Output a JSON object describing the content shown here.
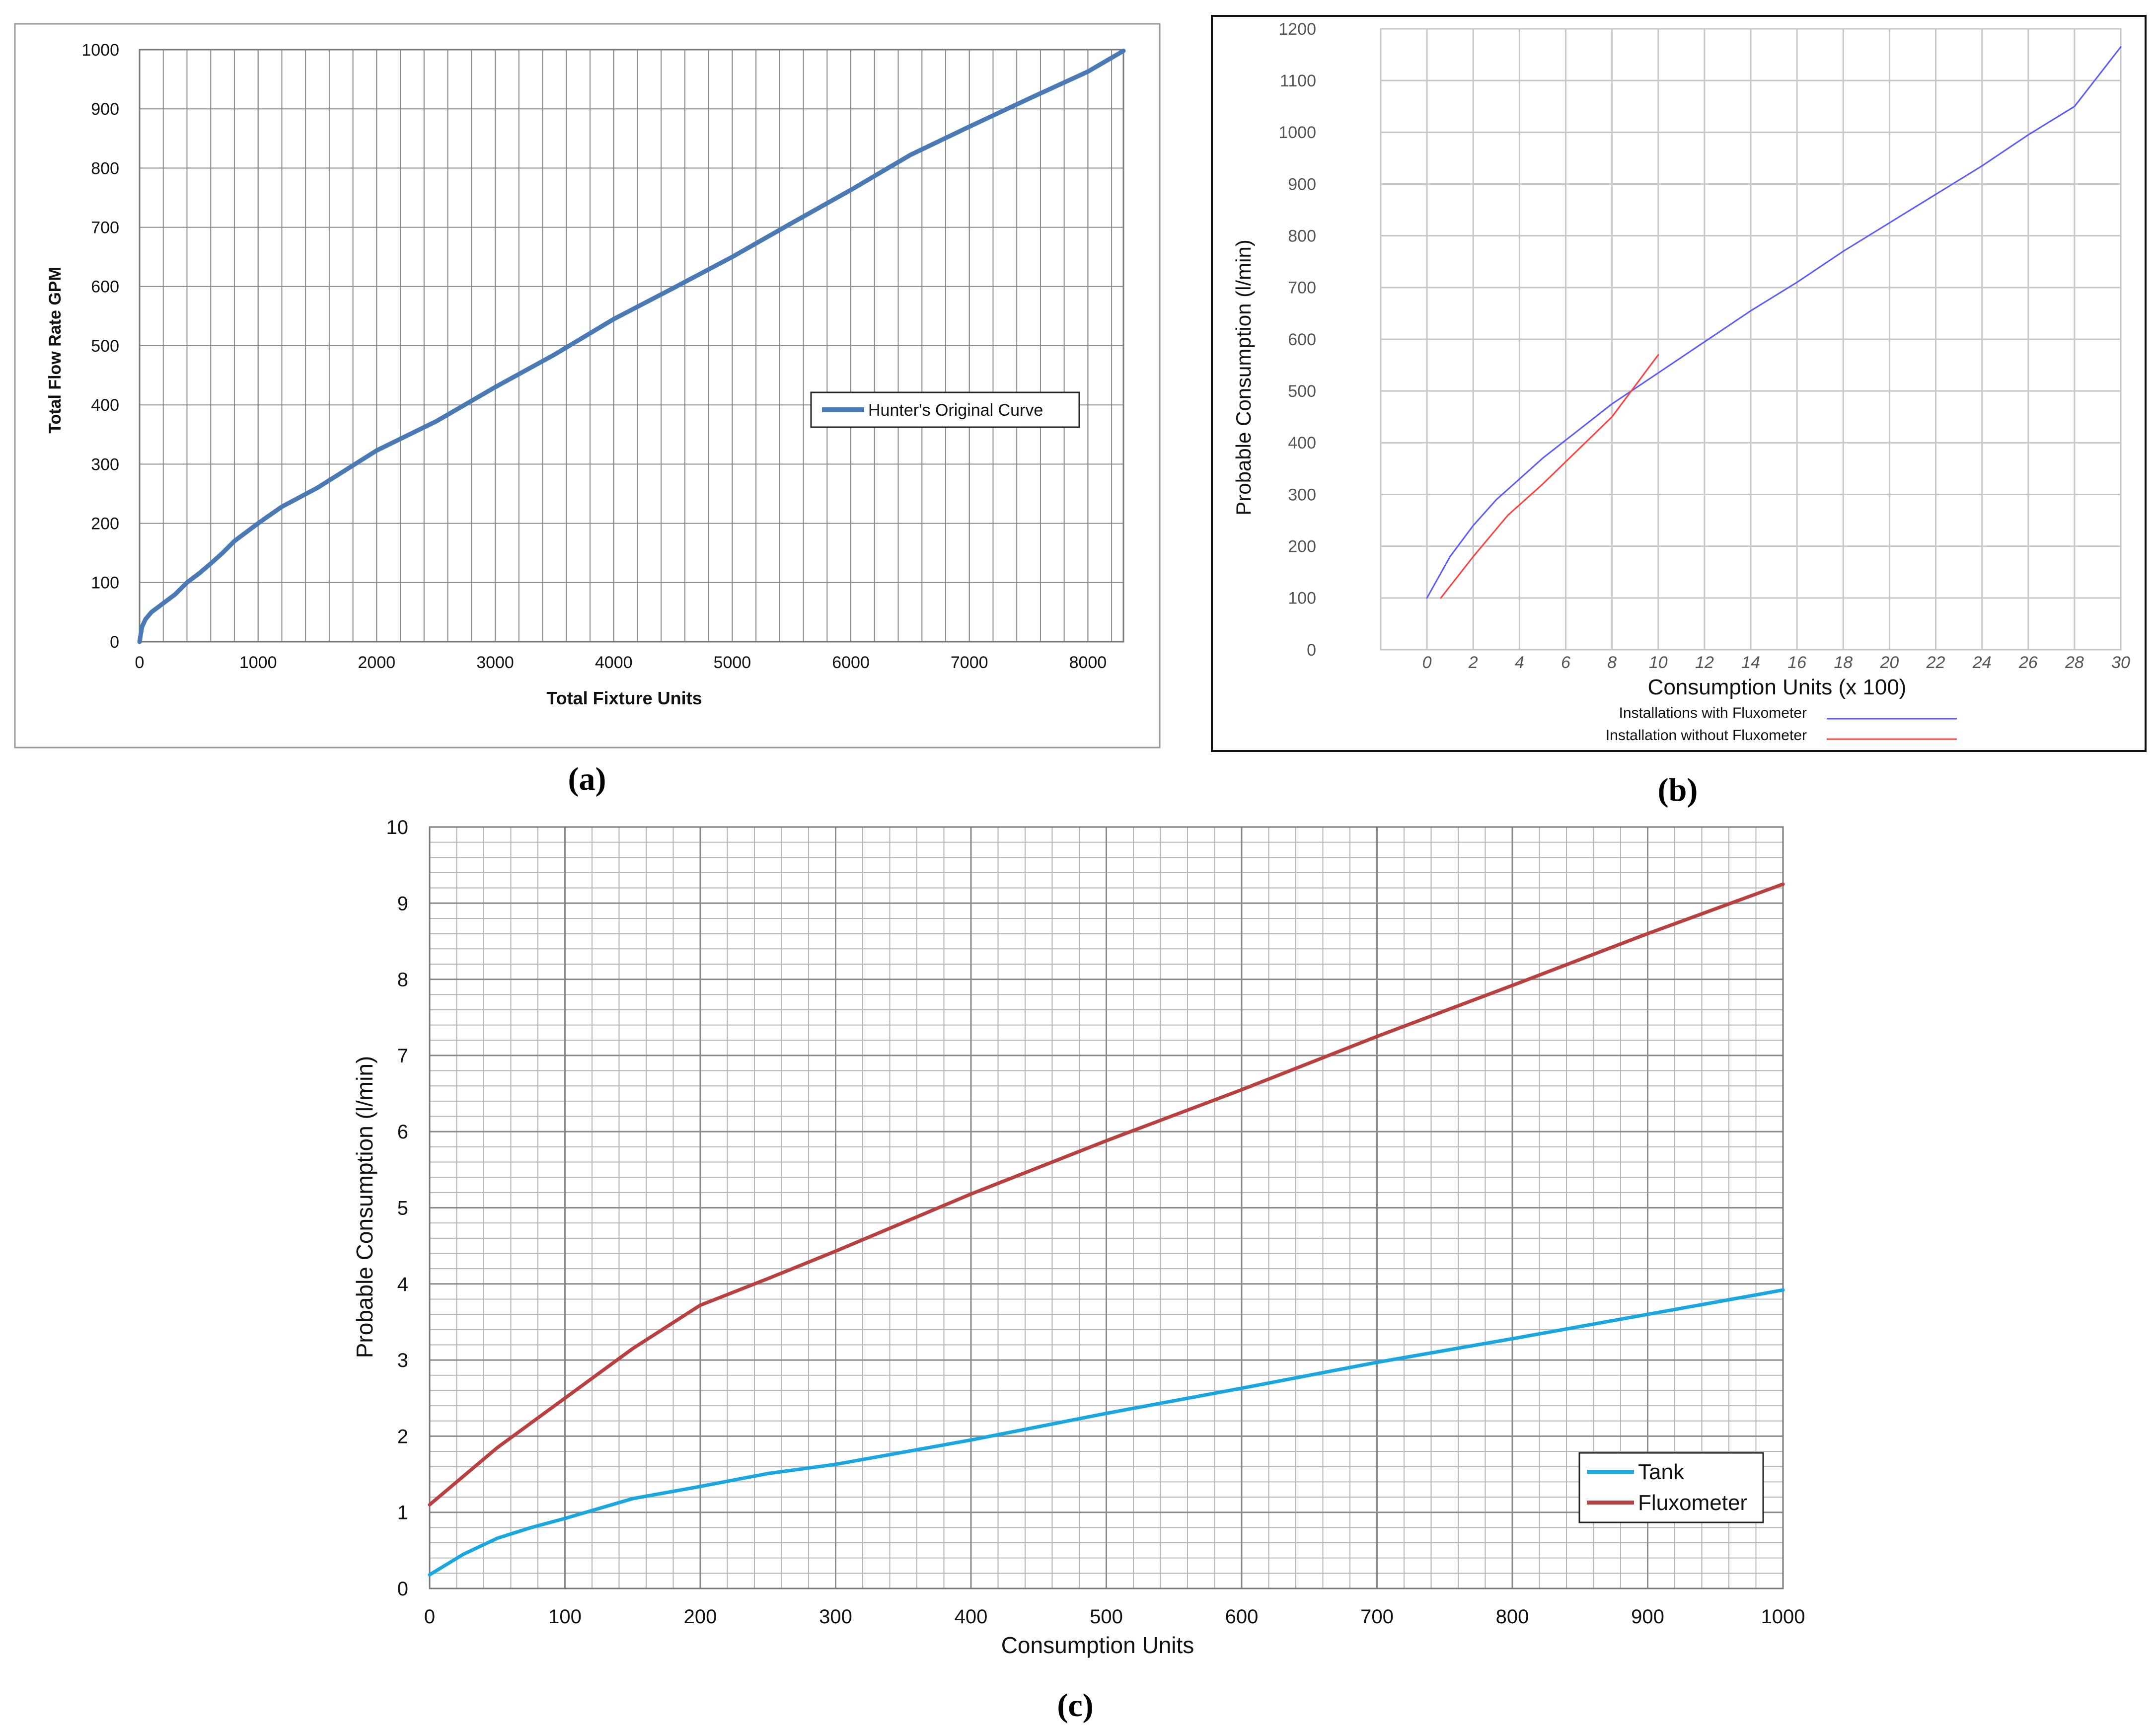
{
  "chart_data": [
    {
      "id": "a",
      "panel_label": "(a)",
      "type": "line",
      "title": "",
      "xlabel": "Total Fixture Units",
      "ylabel": "Total Flow Rate GPM",
      "xlim": [
        0,
        8300
      ],
      "ylim": [
        0,
        1000
      ],
      "x_ticks": [
        0,
        1000,
        2000,
        3000,
        4000,
        5000,
        6000,
        7000,
        8000
      ],
      "y_ticks": [
        0,
        100,
        200,
        300,
        400,
        500,
        600,
        700,
        800,
        900,
        1000
      ],
      "grid": true,
      "legend_position": "center-right",
      "series": [
        {
          "name": "Hunter's Original Curve",
          "color": "#4a7ab5",
          "x": [
            0,
            20,
            50,
            100,
            200,
            300,
            400,
            500,
            600,
            700,
            800,
            1000,
            1200,
            1500,
            2000,
            2500,
            3000,
            3500,
            4000,
            4500,
            5000,
            5500,
            6000,
            6500,
            7000,
            7500,
            8000,
            8300
          ],
          "y": [
            0,
            25,
            38,
            50,
            65,
            80,
            100,
            115,
            132,
            150,
            170,
            200,
            228,
            260,
            323,
            372,
            430,
            485,
            545,
            597,
            650,
            707,
            763,
            822,
            870,
            917,
            963,
            998
          ]
        }
      ]
    },
    {
      "id": "b",
      "panel_label": "(b)",
      "type": "line",
      "title": "",
      "xlabel": "Consumption Units (x 100)",
      "ylabel": "Probable Consumption (l/min)",
      "xlim": [
        -2,
        30
      ],
      "ylim": [
        0,
        1200
      ],
      "x_ticks": [
        0,
        2,
        4,
        6,
        8,
        10,
        12,
        14,
        16,
        18,
        20,
        22,
        24,
        26,
        28,
        30
      ],
      "y_ticks": [
        0,
        100,
        200,
        300,
        400,
        500,
        600,
        700,
        800,
        900,
        1000,
        1100,
        1200
      ],
      "grid": true,
      "legend_position": "bottom",
      "series": [
        {
          "name": "Installations with Fluxometer",
          "color": "#5b5bff",
          "x": [
            0,
            1,
            2,
            3,
            4,
            5,
            6,
            7,
            8,
            9,
            10,
            12,
            14,
            16,
            18,
            20,
            22,
            24,
            26,
            28,
            30
          ],
          "y": [
            100,
            180,
            240,
            290,
            330,
            370,
            405,
            440,
            475,
            505,
            535,
            595,
            655,
            710,
            770,
            825,
            880,
            935,
            995,
            1050,
            1165
          ]
        },
        {
          "name": "Installation without Fluxometer",
          "color": "#ff4040",
          "x": [
            0.6,
            2,
            3.5,
            5,
            6.5,
            8,
            10
          ],
          "y": [
            100,
            180,
            260,
            320,
            385,
            450,
            570
          ]
        }
      ]
    },
    {
      "id": "c",
      "panel_label": "(c)",
      "type": "line",
      "title": "",
      "xlabel": "Consumption Units",
      "ylabel": "Probable Consumption (l/min)",
      "xlim": [
        0,
        1000
      ],
      "ylim": [
        0,
        10
      ],
      "x_ticks": [
        0,
        100,
        200,
        300,
        400,
        500,
        600,
        700,
        800,
        900,
        1000
      ],
      "y_ticks": [
        0,
        1,
        2,
        3,
        4,
        5,
        6,
        7,
        8,
        9,
        10
      ],
      "grid": true,
      "legend_position": "bottom-right",
      "series": [
        {
          "name": "Tank",
          "color": "#1aa7e0",
          "x": [
            0,
            25,
            50,
            75,
            100,
            150,
            200,
            250,
            300,
            400,
            500,
            600,
            700,
            800,
            900,
            1000
          ],
          "y": [
            0.18,
            0.45,
            0.66,
            0.8,
            0.92,
            1.18,
            1.34,
            1.51,
            1.63,
            1.95,
            2.3,
            2.63,
            2.97,
            3.28,
            3.6,
            3.92
          ]
        },
        {
          "name": "Fluxometer",
          "color": "#b94040",
          "x": [
            0,
            50,
            100,
            150,
            200,
            250,
            300,
            400,
            500,
            600,
            700,
            800,
            900,
            1000
          ],
          "y": [
            1.1,
            1.85,
            2.5,
            3.15,
            3.72,
            4.07,
            4.43,
            5.18,
            5.88,
            6.55,
            7.25,
            7.92,
            8.6,
            9.25
          ]
        }
      ]
    }
  ]
}
